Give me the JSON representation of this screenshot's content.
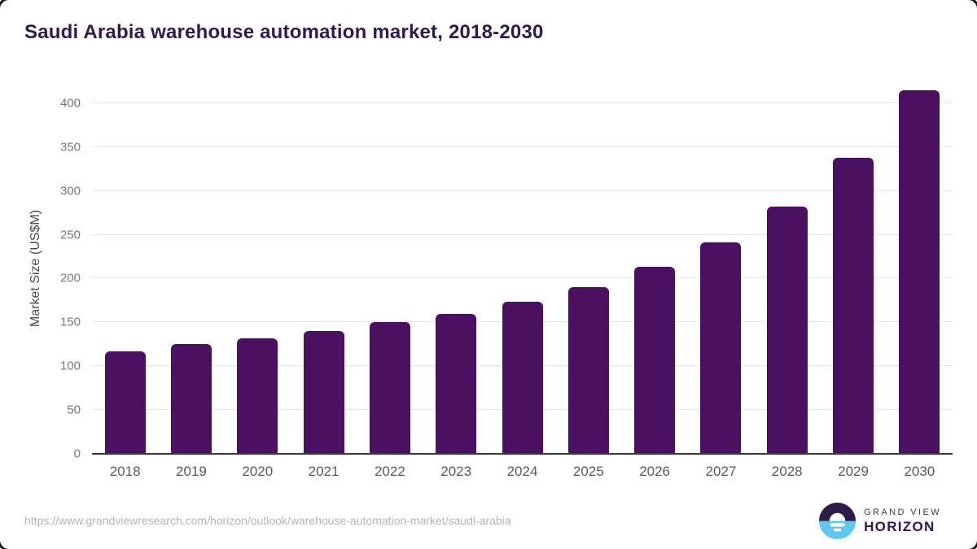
{
  "page": {
    "title": "Saudi Arabia warehouse automation market, 2018-2030",
    "source_url": "https://www.grandviewresearch.com/horizon/outlook/warehouse-automation-market/saudi-arabia"
  },
  "branding": {
    "name_line1": "GRAND VIEW",
    "name_line2": "HORIZON",
    "icon": "horizon-sun-icon"
  },
  "colors": {
    "bar": "#4a1161",
    "title": "#2f194d",
    "grid": "#e7e7e7",
    "axis": "#3a3a3a",
    "tick_label": "#777777",
    "x_label": "#58595b",
    "axis_title": "#4a4a4a",
    "url": "#b4b4b4",
    "logo_purple": "#2d1a47",
    "logo_blue": "#5ec7f2"
  },
  "chart_data": {
    "type": "bar",
    "title": "Saudi Arabia warehouse automation market, 2018-2030",
    "categories": [
      "2018",
      "2019",
      "2020",
      "2021",
      "2022",
      "2023",
      "2024",
      "2025",
      "2026",
      "2027",
      "2028",
      "2029",
      "2030"
    ],
    "values": [
      117,
      125,
      132,
      140,
      150,
      160,
      174,
      190,
      213,
      241,
      282,
      338,
      415
    ],
    "xlabel": "",
    "ylabel": "Market Size (US$M)",
    "ylim": [
      0,
      425
    ],
    "yticks": [
      0,
      50,
      100,
      150,
      200,
      250,
      300,
      350,
      400
    ],
    "grid": true,
    "legend": "none",
    "bar_color": "#4a1161"
  }
}
